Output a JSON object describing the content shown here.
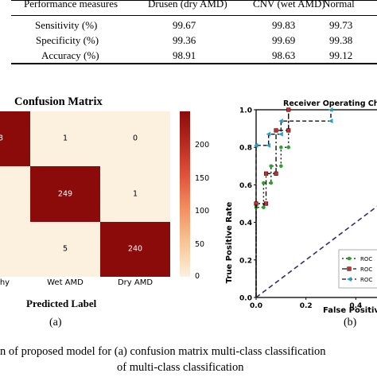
{
  "table": {
    "headers": [
      "Performance measures",
      "Drusen (dry AMD)",
      "CNV (wet AMD)",
      "Normal"
    ],
    "rows": [
      [
        "Sensitivity (%)",
        "99.67",
        "99.83",
        "99.73"
      ],
      [
        "Specificity (%)",
        "99.36",
        "99.69",
        "99.38"
      ],
      [
        "Accuracy (%)",
        "98.91",
        "98.63",
        "99.12"
      ]
    ]
  },
  "confusion_matrix": {
    "title": "Confusion Matrix",
    "xlabel": "Predicted Label",
    "x_tick_labels": [
      "thy",
      "Wet AMD",
      "Dry AMD"
    ],
    "colorbar_ticks": [
      "0",
      "50",
      "100",
      "150",
      "200"
    ],
    "sub_label": "(a)"
  },
  "roc": {
    "title": "Receiver Operating Cha",
    "ylabel": "True Positive Rate",
    "xlabel": "False Positive",
    "y_ticks": [
      "0.0",
      "0.2",
      "0.4",
      "0.6",
      "0.8",
      "1.0"
    ],
    "x_ticks": [
      "0.0",
      "0.2",
      "0.4"
    ],
    "legend": [
      "ROC",
      "ROC",
      "ROC"
    ],
    "sub_label": "(b)"
  },
  "caption": {
    "line1": "n of proposed model for (a) confusion matrix multi-class classification",
    "line2": "of multi-class classification"
  },
  "colors": {
    "cm_high": "#8b0b0b",
    "cm_low": "#fcf0de",
    "series_green": "#2ca02c",
    "series_red": "#d62728",
    "series_blue": "#1f9fd8",
    "diagonal": "#3b2a6e"
  },
  "chart_data": [
    {
      "type": "heatmap",
      "title": "Confusion Matrix",
      "xlabel": "Predicted Label",
      "x_tick_labels": [
        "thy",
        "Wet AMD",
        "Dry AMD"
      ],
      "values": [
        [
          "3",
          "1",
          "0"
        ],
        [
          "",
          "249",
          "1"
        ],
        [
          "",
          "5",
          "240"
        ]
      ],
      "colorbar_range": [
        0,
        249
      ],
      "colorbar_ticks": [
        0,
        50,
        100,
        150,
        200
      ]
    },
    {
      "type": "line",
      "title": "Receiver Operating Cha",
      "xlabel": "False Positive",
      "ylabel": "True Positive Rate",
      "xlim": [
        0,
        0.6
      ],
      "ylim": [
        0,
        1.0
      ],
      "series": [
        {
          "name": "ROC",
          "x": [
            0.0,
            0.0,
            0.03,
            0.03,
            0.06,
            0.06,
            0.1,
            0.1,
            0.13,
            0.13
          ],
          "y": [
            0.0,
            0.48,
            0.48,
            0.61,
            0.61,
            0.7,
            0.7,
            0.8,
            0.8,
            1.0
          ]
        },
        {
          "name": "ROC",
          "x": [
            0.0,
            0.0,
            0.04,
            0.04,
            0.08,
            0.08,
            0.13,
            0.13
          ],
          "y": [
            0.0,
            0.5,
            0.5,
            0.66,
            0.66,
            0.89,
            0.89,
            1.0
          ]
        },
        {
          "name": "ROC",
          "x": [
            0.0,
            0.0,
            0.05,
            0.05,
            0.1,
            0.1,
            0.3,
            0.3
          ],
          "y": [
            0.0,
            0.81,
            0.81,
            0.87,
            0.87,
            0.94,
            0.94,
            1.0
          ]
        },
        {
          "name": "",
          "x": [
            0.0,
            0.6
          ],
          "y": [
            0.0,
            0.6
          ]
        }
      ]
    }
  ]
}
